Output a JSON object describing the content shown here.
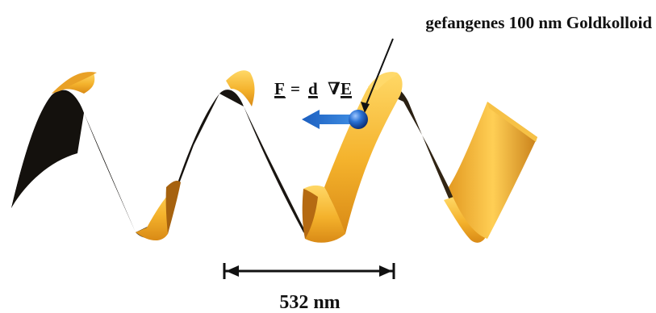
{
  "labels": {
    "particle": "gefangenes  100 nm Goldkolloid",
    "force_F": "F",
    "force_equals": "=",
    "force_d": "d",
    "force_nabla": "∇",
    "force_E": "E",
    "scale": "532 nm"
  },
  "colors": {
    "surface_front": "#f3b12a",
    "surface_highlight": "#ffd15a",
    "surface_shadow": "#d4861a",
    "surface_back": "#17130f",
    "particle": "#1f66c8",
    "arrow": "#2a74d0",
    "text": "#111111"
  },
  "icons": {
    "particle": "gold-colloid-sphere",
    "force_arrow": "arrow-left",
    "scale_bar": "double-headed-scale-bar"
  }
}
